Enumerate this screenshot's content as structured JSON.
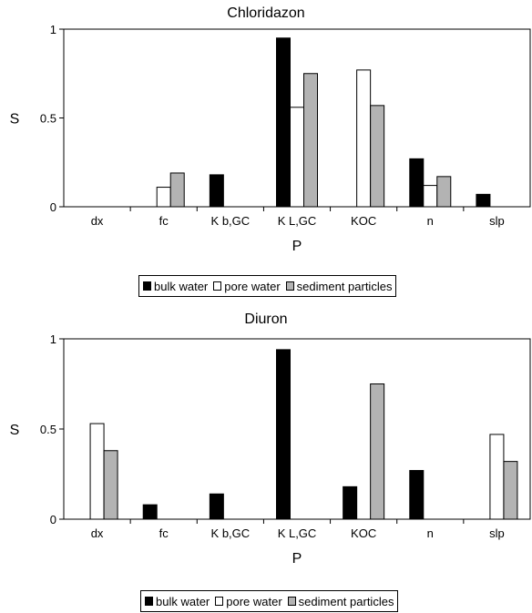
{
  "chart_data": [
    {
      "type": "bar",
      "title": "Chloridazon",
      "xlabel": "P",
      "ylabel": "S",
      "ylim": [
        0,
        1
      ],
      "yticks": [
        "0",
        "0.5",
        "1"
      ],
      "categories": [
        "dx",
        "fc",
        "K b,GC",
        "K L,GC",
        "KOC",
        "n",
        "slp"
      ],
      "series": [
        {
          "name": "bulk water",
          "color": "#000000",
          "values": [
            0,
            0,
            0.18,
            0.95,
            0,
            0.27,
            0.07
          ]
        },
        {
          "name": "pore water",
          "color": "#ffffff",
          "values": [
            0,
            0.11,
            0,
            0.56,
            0.77,
            0.12,
            0
          ]
        },
        {
          "name": "sediment particles",
          "color": "#b3b3b3",
          "values": [
            0,
            0.19,
            0,
            0.75,
            0.57,
            0.17,
            0
          ]
        }
      ],
      "legend_position": "bottom-center",
      "grid": false
    },
    {
      "type": "bar",
      "title": "Diuron",
      "xlabel": "P",
      "ylabel": "S",
      "ylim": [
        0,
        1
      ],
      "yticks": [
        "0",
        "0.5",
        "1"
      ],
      "categories": [
        "dx",
        "fc",
        "K b,GC",
        "K L,GC",
        "KOC",
        "n",
        "slp"
      ],
      "series": [
        {
          "name": "bulk water",
          "color": "#000000",
          "values": [
            0,
            0.08,
            0.14,
            0.94,
            0.18,
            0.27,
            0
          ]
        },
        {
          "name": "pore water",
          "color": "#ffffff",
          "values": [
            0.53,
            0,
            0,
            0,
            0,
            0,
            0.47
          ]
        },
        {
          "name": "sediment particles",
          "color": "#b3b3b3",
          "values": [
            0.38,
            0,
            0,
            0,
            0.75,
            0,
            0.32
          ]
        }
      ],
      "legend_position": "bottom-center",
      "grid": false
    }
  ]
}
